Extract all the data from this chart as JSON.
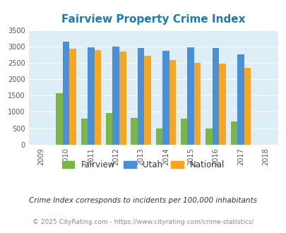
{
  "title": "Fairview Property Crime Index",
  "title_color": "#1a7abf",
  "years": [
    2009,
    2010,
    2011,
    2012,
    2013,
    2014,
    2015,
    2016,
    2017,
    2018
  ],
  "bar_years": [
    2010,
    2011,
    2012,
    2013,
    2014,
    2015,
    2016,
    2017
  ],
  "fairview": [
    1580,
    800,
    960,
    810,
    490,
    800,
    490,
    700
  ],
  "utah": [
    3160,
    2980,
    3000,
    2950,
    2880,
    2980,
    2950,
    2770
  ],
  "national": [
    2940,
    2890,
    2850,
    2720,
    2590,
    2500,
    2470,
    2360
  ],
  "fairview_color": "#7ab648",
  "utah_color": "#4a90d9",
  "national_color": "#f5a623",
  "bg_color": "#ddeef6",
  "ylim": [
    0,
    3500
  ],
  "yticks": [
    0,
    500,
    1000,
    1500,
    2000,
    2500,
    3000,
    3500
  ],
  "legend_labels": [
    "Fairview",
    "Utah",
    "National"
  ],
  "footnote1": "Crime Index corresponds to incidents per 100,000 inhabitants",
  "footnote2": "© 2025 CityRating.com - https://www.cityrating.com/crime-statistics/",
  "footnote1_color": "#333333",
  "footnote2_color": "#888888"
}
